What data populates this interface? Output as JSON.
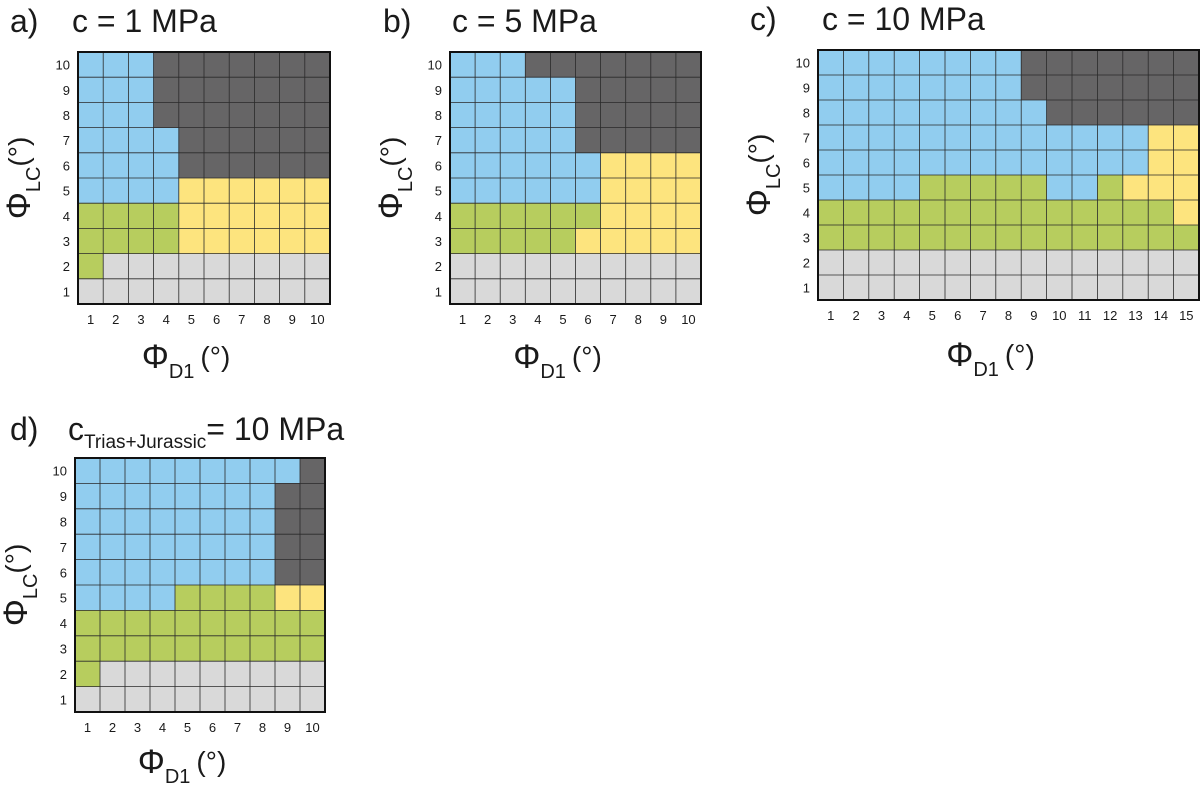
{
  "colors": {
    "blue": "#91cdef",
    "dark": "#666566",
    "yellow": "#fde47e",
    "green": "#b7cd5e",
    "gray": "#d9d9d9",
    "gridline": "#2a2a2a",
    "frame": "#111111"
  },
  "chart_data": [
    {
      "type": "heatmap",
      "panel_label": "a)",
      "title": {
        "prefix": "c = 1 MPa",
        "sub": "",
        "suffix": ""
      },
      "xlabel": {
        "symbol": "Φ",
        "sub": "D1",
        "unit": "(°)"
      },
      "ylabel": {
        "symbol": "Φ",
        "sub": "LC",
        "unit": "(°)"
      },
      "x": [
        "1",
        "2",
        "3",
        "4",
        "5",
        "6",
        "7",
        "8",
        "9",
        "10"
      ],
      "y": [
        "1",
        "2",
        "3",
        "4",
        "5",
        "6",
        "7",
        "8",
        "9",
        "10"
      ],
      "rows_top_to_bottom": [
        "BBBDDDDDDD",
        "BBBDDDDDDD",
        "BBBDDDDDDD",
        "BBBBDDDDDD",
        "BBBBDDDDDD",
        "BBBBYYYYYY",
        "GGGGYYYYYY",
        "GGGGYYYYYY",
        "GLLLLLLLLL",
        "LLLLLLLLLL"
      ]
    },
    {
      "type": "heatmap",
      "panel_label": "b)",
      "title": {
        "prefix": "c = 5 MPa",
        "sub": "",
        "suffix": ""
      },
      "xlabel": {
        "symbol": "Φ",
        "sub": "D1",
        "unit": "(°)"
      },
      "ylabel": {
        "symbol": "Φ",
        "sub": "LC",
        "unit": "(°)"
      },
      "x": [
        "1",
        "2",
        "3",
        "4",
        "5",
        "6",
        "7",
        "8",
        "9",
        "10"
      ],
      "y": [
        "1",
        "2",
        "3",
        "4",
        "5",
        "6",
        "7",
        "8",
        "9",
        "10"
      ],
      "rows_top_to_bottom": [
        "BBBDDDDDDD",
        "BBBBBDDDDD",
        "BBBBBDDDDD",
        "BBBBBDDDDD",
        "BBBBBBYYYY",
        "BBBBBBYYYY",
        "GGGGGGYYYY",
        "GGGGGYYYYY",
        "LLLLLLLLLL",
        "LLLLLLLLLL"
      ]
    },
    {
      "type": "heatmap",
      "panel_label": "c)",
      "title": {
        "prefix": "c = 10 MPa",
        "sub": "",
        "suffix": ""
      },
      "xlabel": {
        "symbol": "Φ",
        "sub": "D1",
        "unit": "(°)"
      },
      "ylabel": {
        "symbol": "Φ",
        "sub": "LC",
        "unit": "(°)"
      },
      "x": [
        "1",
        "2",
        "3",
        "4",
        "5",
        "6",
        "7",
        "8",
        "9",
        "10",
        "11",
        "12",
        "13",
        "14",
        "15"
      ],
      "y": [
        "1",
        "2",
        "3",
        "4",
        "5",
        "6",
        "7",
        "8",
        "9",
        "10"
      ],
      "rows_top_to_bottom": [
        "BBBBBBBBDDDDDDD",
        "BBBBBBBBDDDDDDD",
        "BBBBBBBBBDDDDDD",
        "BBBBBBBBBBBBBYY",
        "BBBBBBBBBBBBBYY",
        "BBBBGGGGGBBGYYY",
        "GGGGGGGGGGGGGGY",
        "GGGGGGGGGGGGGGG",
        "LLLLLLLLLLLLLLL",
        "LLLLLLLLLLLLLLL"
      ]
    },
    {
      "type": "heatmap",
      "panel_label": "d)",
      "title": {
        "prefix": "c",
        "sub": "Trias+Jurassic",
        "suffix": "= 10 MPa"
      },
      "xlabel": {
        "symbol": "Φ",
        "sub": "D1",
        "unit": "(°)"
      },
      "ylabel": {
        "symbol": "Φ",
        "sub": "LC",
        "unit": "(°)"
      },
      "x": [
        "1",
        "2",
        "3",
        "4",
        "5",
        "6",
        "7",
        "8",
        "9",
        "10"
      ],
      "y": [
        "1",
        "2",
        "3",
        "4",
        "5",
        "6",
        "7",
        "8",
        "9",
        "10"
      ],
      "rows_top_to_bottom": [
        "BBBBBBBBBD",
        "BBBBBBBBDD",
        "BBBBBBBBDD",
        "BBBBBBBBDD",
        "BBBBBBBBDD",
        "BBBBGGGGYY",
        "GGGGGGGGGG",
        "GGGGGGGGGG",
        "GLLLLLLLLL",
        "LLLLLLLLLL"
      ]
    }
  ]
}
